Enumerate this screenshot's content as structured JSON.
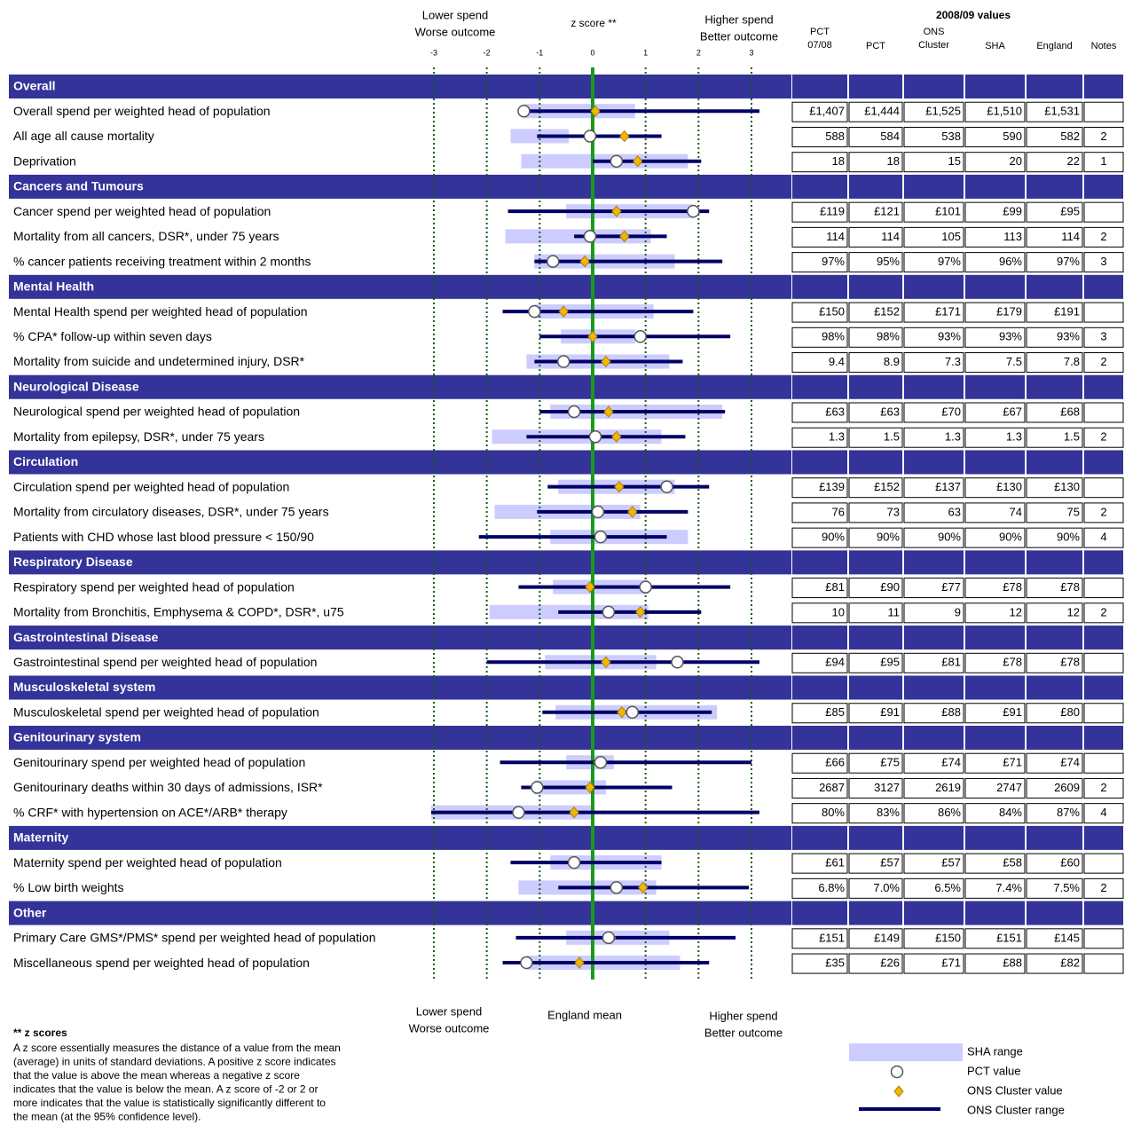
{
  "chart_data": {
    "type": "spine",
    "top_left": [
      "Lower  spend",
      "Worse outcome"
    ],
    "top_center": "z score **",
    "top_right": [
      "Higher spend",
      "Better outcome"
    ],
    "table_title": "2008/09 values",
    "columns": [
      [
        "PCT",
        "07/08"
      ],
      [
        "PCT"
      ],
      [
        "ONS",
        "Cluster"
      ],
      [
        "SHA"
      ],
      [
        "England"
      ],
      [
        "Notes"
      ]
    ],
    "xlim": [
      -3,
      3
    ],
    "xticks": [
      -3,
      -2,
      -1,
      0,
      1,
      2,
      3
    ],
    "bottom_left": [
      "Lower  spend",
      "Worse outcome"
    ],
    "bottom_center": "England mean",
    "bottom_right": [
      "Higher spend",
      "Better outcome"
    ],
    "sections": [
      {
        "name": "Overall",
        "rows": [
          {
            "label": "Overall spend per weighted head of population",
            "sha_range": [
              -1.3,
              0.8
            ],
            "cluster_range": [
              -1.2,
              3.15
            ],
            "pct": -1.3,
            "cluster": 0.05,
            "table": [
              "£1,407",
              "£1,444",
              "£1,525",
              "£1,510",
              "£1,531"
            ]
          },
          {
            "label": "All age all cause mortality",
            "sha_range": [
              -1.55,
              -0.45
            ],
            "cluster_range": [
              -1.05,
              1.3
            ],
            "pct": -0.05,
            "cluster": 0.6,
            "table": [
              588,
              584,
              538,
              590,
              582
            ],
            "note": 2
          },
          {
            "label": "Deprivation",
            "sha_range": [
              -1.35,
              1.8
            ],
            "cluster_range": [
              0,
              2.05
            ],
            "pct": 0.45,
            "cluster": 0.85,
            "table": [
              18,
              18,
              15,
              20,
              22
            ],
            "note": 1
          }
        ]
      },
      {
        "name": "Cancers and Tumours",
        "rows": [
          {
            "label": "Cancer spend per weighted head of population",
            "sha_range": [
              -0.5,
              1.9
            ],
            "cluster_range": [
              -1.6,
              2.2
            ],
            "pct": 1.9,
            "cluster": 0.45,
            "table": [
              "£119",
              "£121",
              "£101",
              "£99",
              "£95"
            ]
          },
          {
            "label": "Mortality from all cancers, DSR*, under 75 years",
            "sha_range": [
              -1.65,
              1.1
            ],
            "cluster_range": [
              -0.35,
              1.4
            ],
            "pct": -0.05,
            "cluster": 0.6,
            "table": [
              114,
              114,
              105,
              113,
              114
            ],
            "note": 2
          },
          {
            "label": "% cancer patients receiving treatment within 2 months",
            "sha_range": [
              -1.1,
              1.55
            ],
            "cluster_range": [
              -1.1,
              2.45
            ],
            "pct": -0.75,
            "cluster": -0.15,
            "table": [
              "97%",
              "95%",
              "97%",
              "96%",
              "97%"
            ],
            "note": 3
          }
        ]
      },
      {
        "name": "Mental Health",
        "rows": [
          {
            "label": "Mental Health spend per weighted head of population",
            "sha_range": [
              -1.1,
              1.15
            ],
            "cluster_range": [
              -1.7,
              1.9
            ],
            "pct": -1.1,
            "cluster": -0.55,
            "table": [
              "£150",
              "£152",
              "£171",
              "£179",
              "£191"
            ]
          },
          {
            "label": "% CPA* follow-up within seven days",
            "sha_range": [
              -0.6,
              0.8
            ],
            "cluster_range": [
              -1.0,
              2.6
            ],
            "pct": 0.9,
            "cluster": 0,
            "table": [
              "98%",
              "98%",
              "93%",
              "93%",
              "93%"
            ],
            "note": 3
          },
          {
            "label": "Mortality from suicide and undetermined injury, DSR*",
            "sha_range": [
              -1.25,
              1.45
            ],
            "cluster_range": [
              -1.1,
              1.7
            ],
            "pct": -0.55,
            "cluster": 0.25,
            "table": [
              9.4,
              8.9,
              7.3,
              7.5,
              7.8
            ],
            "note": 2
          }
        ]
      },
      {
        "name": "Neurological Disease",
        "rows": [
          {
            "label": "Neurological spend per weighted head of population",
            "sha_range": [
              -0.8,
              2.45
            ],
            "cluster_range": [
              -1.0,
              2.5
            ],
            "pct": -0.35,
            "cluster": 0.3,
            "table": [
              "£63",
              "£63",
              "£70",
              "£67",
              "£68"
            ]
          },
          {
            "label": "Mortality from epilepsy, DSR*, under 75 years",
            "sha_range": [
              -1.9,
              1.3
            ],
            "cluster_range": [
              -1.25,
              1.75
            ],
            "pct": 0.05,
            "cluster": 0.45,
            "table": [
              1.3,
              1.5,
              1.3,
              1.3,
              1.5
            ],
            "note": 2
          }
        ]
      },
      {
        "name": "Circulation",
        "rows": [
          {
            "label": "Circulation spend per weighted head of population",
            "sha_range": [
              -0.65,
              1.55
            ],
            "cluster_range": [
              -0.85,
              2.2
            ],
            "pct": 1.4,
            "cluster": 0.5,
            "table": [
              "£139",
              "£152",
              "£137",
              "£130",
              "£130"
            ]
          },
          {
            "label": "Mortality from circulatory diseases, DSR*, under 75 years",
            "sha_range": [
              -1.85,
              0.9
            ],
            "cluster_range": [
              -1.05,
              1.8
            ],
            "pct": 0.1,
            "cluster": 0.75,
            "table": [
              76,
              73,
              63,
              74,
              75
            ],
            "note": 2
          },
          {
            "label": "Patients with CHD whose last blood pressure < 150/90",
            "sha_range": [
              -0.8,
              1.8
            ],
            "cluster_range": [
              -2.15,
              1.4
            ],
            "pct": 0.15,
            "cluster": 0.15,
            "table": [
              "90%",
              "90%",
              "90%",
              "90%",
              "90%"
            ],
            "note": 4
          }
        ]
      },
      {
        "name": "Respiratory Disease",
        "rows": [
          {
            "label": "Respiratory spend per weighted head of population",
            "sha_range": [
              -0.75,
              1.05
            ],
            "cluster_range": [
              -1.4,
              2.6
            ],
            "pct": 1.0,
            "cluster": -0.05,
            "table": [
              "£81",
              "£90",
              "£77",
              "£78",
              "£78"
            ]
          },
          {
            "label": "Mortality from Bronchitis, Emphysema & COPD*, DSR*, u75",
            "sha_range": [
              -1.95,
              1.05
            ],
            "cluster_range": [
              -0.65,
              2.05
            ],
            "pct": 0.3,
            "cluster": 0.9,
            "table": [
              10,
              11,
              9,
              12,
              12
            ],
            "note": 2
          }
        ]
      },
      {
        "name": "Gastrointestinal Disease",
        "rows": [
          {
            "label": "Gastrointestinal spend per weighted head of population",
            "sha_range": [
              -0.9,
              1.2
            ],
            "cluster_range": [
              -2.0,
              3.15
            ],
            "pct": 1.6,
            "cluster": 0.25,
            "table": [
              "£94",
              "£95",
              "£81",
              "£78",
              "£78"
            ]
          }
        ]
      },
      {
        "name": "Musculoskeletal system",
        "rows": [
          {
            "label": "Musculoskeletal spend per weighted head of population",
            "sha_range": [
              -0.7,
              2.35
            ],
            "cluster_range": [
              -0.95,
              2.25
            ],
            "pct": 0.75,
            "cluster": 0.55,
            "table": [
              "£85",
              "£91",
              "£88",
              "£91",
              "£80"
            ]
          }
        ]
      },
      {
        "name": "Genitourinary system",
        "rows": [
          {
            "label": "Genitourinary spend per weighted head of population",
            "sha_range": [
              -0.5,
              0.4
            ],
            "cluster_range": [
              -1.75,
              3.0
            ],
            "pct": 0.15,
            "cluster": 0.1,
            "table": [
              "£66",
              "£75",
              "£74",
              "£71",
              "£74"
            ]
          },
          {
            "label": "Genitourinary deaths within 30 days of admissions, ISR*",
            "sha_range": [
              -1.1,
              0.25
            ],
            "cluster_range": [
              -1.35,
              1.5
            ],
            "pct": -1.05,
            "cluster": -0.05,
            "table": [
              2687,
              3127,
              2619,
              2747,
              2609
            ],
            "note": 2
          },
          {
            "label": "% CRF* with hypertension on ACE*/ARB* therapy",
            "sha_range": [
              -3.05,
              0
            ],
            "cluster_range": [
              -3.05,
              3.15
            ],
            "pct": -1.4,
            "cluster": -0.35,
            "table": [
              "80%",
              "83%",
              "86%",
              "84%",
              "87%"
            ],
            "note": 4
          }
        ]
      },
      {
        "name": "Maternity",
        "rows": [
          {
            "label": "Maternity spend per weighted head of population",
            "sha_range": [
              -0.8,
              1.3
            ],
            "cluster_range": [
              -1.55,
              1.3
            ],
            "pct": -0.35,
            "cluster": -0.35,
            "table": [
              "£61",
              "£57",
              "£57",
              "£58",
              "£60"
            ]
          },
          {
            "label": "% Low birth weights",
            "sha_range": [
              -1.4,
              1.2
            ],
            "cluster_range": [
              -0.65,
              2.95
            ],
            "pct": 0.45,
            "cluster": 0.95,
            "table": [
              "6.8%",
              "7.0%",
              "6.5%",
              "7.4%",
              "7.5%"
            ],
            "note": 2
          }
        ]
      },
      {
        "name": "Other",
        "rows": [
          {
            "label": "Primary Care GMS*/PMS* spend per weighted head of population",
            "sha_range": [
              -0.5,
              1.45
            ],
            "cluster_range": [
              -1.45,
              2.7
            ],
            "pct": 0.3,
            "cluster": 0.35,
            "table": [
              "£151",
              "£149",
              "£150",
              "£151",
              "£145"
            ]
          },
          {
            "label": "Miscellaneous spend per weighted head of population",
            "sha_range": [
              -1.25,
              1.65
            ],
            "cluster_range": [
              -1.7,
              2.2
            ],
            "pct": -1.25,
            "cluster": -0.25,
            "table": [
              "£35",
              "£26",
              "£71",
              "£88",
              "£82"
            ]
          }
        ]
      }
    ],
    "colors": {
      "header": "#333399",
      "sha": "#ccccff",
      "cluster_range": "#000066",
      "cluster": "#f2b705",
      "pct": "#ffffff",
      "grid": "#1a5c1a",
      "zero": "#1a9a1a"
    },
    "legend": [
      "SHA range",
      "PCT value",
      "ONS Cluster value",
      "ONS Cluster range"
    ],
    "footnote_title": "** z scores",
    "footnote": [
      "A z score essentially measures the distance of a value from the mean",
      "(average) in units of standard deviations. A positive z score indicates",
      "that the value is above the mean whereas a negative z score",
      "indicates that the value is below the mean. A z score of -2 or 2 or",
      "more indicates that the value is statistically significantly different to",
      "the mean (at the 95% confidence level)."
    ]
  }
}
